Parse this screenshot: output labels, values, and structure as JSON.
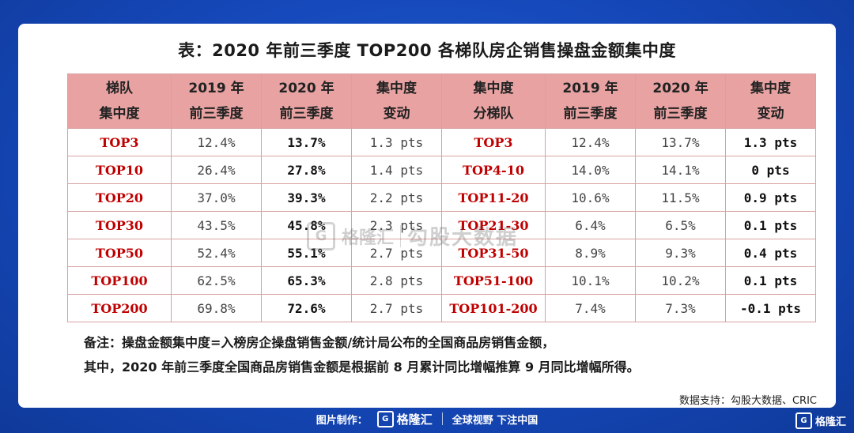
{
  "title": "表：2020 年前三季度 TOP200 各梯队房企销售操盘金额集中度",
  "headers": [
    {
      "line1": "梯队",
      "line2": "集中度"
    },
    {
      "line1": "2019 年",
      "line2": "前三季度"
    },
    {
      "line1": "2020 年",
      "line2": "前三季度"
    },
    {
      "line1": "集中度",
      "line2": "变动"
    },
    {
      "line1": "集中度",
      "line2": "分梯队"
    },
    {
      "line1": "2019 年",
      "line2": "前三季度"
    },
    {
      "line1": "2020 年",
      "line2": "前三季度"
    },
    {
      "line1": "集中度",
      "line2": "变动"
    }
  ],
  "rows": [
    [
      "TOP3",
      "12.4%",
      "13.7%",
      "1.3 pts",
      "TOP3",
      "12.4%",
      "13.7%",
      "1.3 pts"
    ],
    [
      "TOP10",
      "26.4%",
      "27.8%",
      "1.4 pts",
      "TOP4-10",
      "14.0%",
      "14.1%",
      "0 pts"
    ],
    [
      "TOP20",
      "37.0%",
      "39.3%",
      "2.2 pts",
      "TOP11-20",
      "10.6%",
      "11.5%",
      "0.9 pts"
    ],
    [
      "TOP30",
      "43.5%",
      "45.8%",
      "2.3 pts",
      "TOP21-30",
      "6.4%",
      "6.5%",
      "0.1 pts"
    ],
    [
      "TOP50",
      "52.4%",
      "55.1%",
      "2.7 pts",
      "TOP31-50",
      "8.9%",
      "9.3%",
      "0.4 pts"
    ],
    [
      "TOP100",
      "62.5%",
      "65.3%",
      "2.8 pts",
      "TOP51-100",
      "10.1%",
      "10.2%",
      "0.1 pts"
    ],
    [
      "TOP200",
      "69.8%",
      "72.6%",
      "2.7 pts",
      "TOP101-200",
      "7.4%",
      "7.3%",
      "-0.1 pts"
    ]
  ],
  "notes": {
    "line1": "备注：操盘金额集中度=入榜房企操盘销售金额/统计局公布的全国商品房销售金额，",
    "line2": "其中，2020 年前三季度全国商品房销售金额是根据前 8 月累计同比增幅推算 9 月同比增幅所得。"
  },
  "source": "数据支持：勾股大数据、CRIC",
  "watermark": {
    "brand": "格隆汇",
    "text": "勾股大数据"
  },
  "footer": {
    "made_by": "图片制作：",
    "brand": "格隆汇",
    "slogan": "全球视野 下注中国"
  },
  "corner_brand": "格隆汇"
}
